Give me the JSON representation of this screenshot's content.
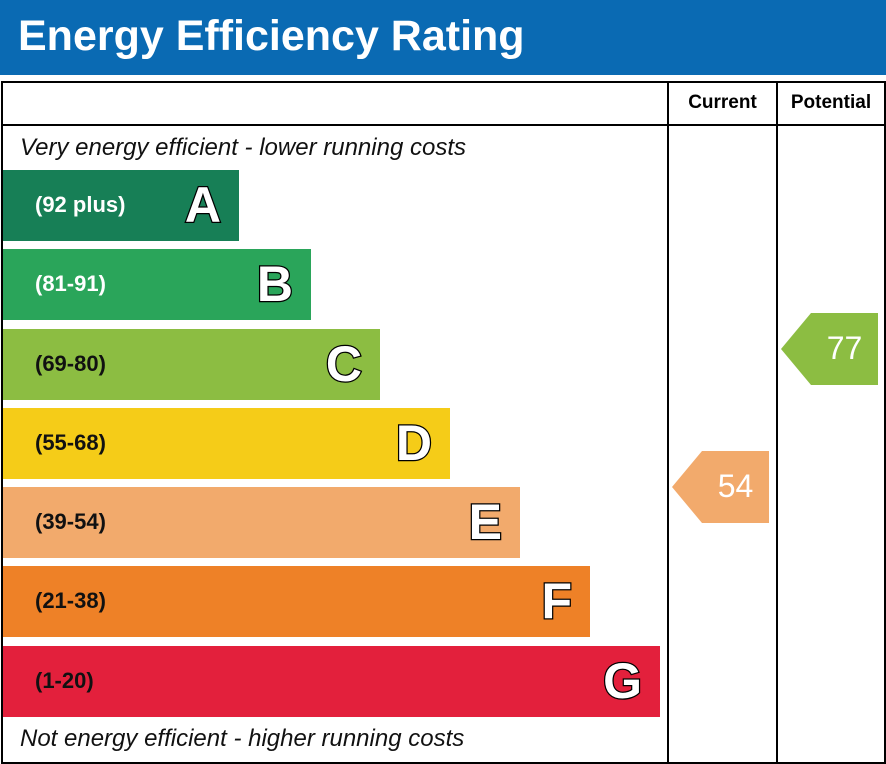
{
  "title": "Energy Efficiency Rating",
  "columns": {
    "current": "Current",
    "potential": "Potential"
  },
  "top_caption": "Very energy efficient - lower running costs",
  "bottom_caption": "Not energy efficient - higher running costs",
  "chart_data": {
    "type": "bar",
    "bands": [
      {
        "letter": "A",
        "range": "(92 plus)",
        "color": "#177f56",
        "min": 92
      },
      {
        "letter": "B",
        "range": "(81-91)",
        "color": "#2aa55a",
        "min": 81
      },
      {
        "letter": "C",
        "range": "(69-80)",
        "color": "#8cbd42",
        "min": 69
      },
      {
        "letter": "D",
        "range": "(55-68)",
        "color": "#f5cc18",
        "min": 55
      },
      {
        "letter": "E",
        "range": "(39-54)",
        "color": "#f2aa6c",
        "min": 39
      },
      {
        "letter": "F",
        "range": "(21-38)",
        "color": "#ee8127",
        "min": 21
      },
      {
        "letter": "G",
        "range": "(1-20)",
        "color": "#e3203c",
        "min": 1
      }
    ],
    "current": 54,
    "potential": 77
  }
}
